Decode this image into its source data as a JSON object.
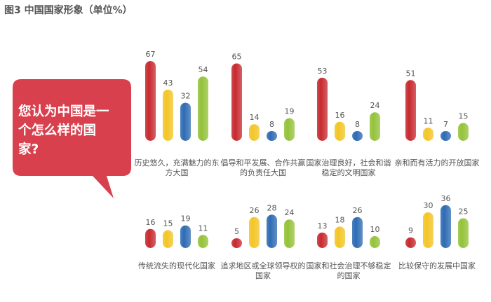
{
  "title": "图3 中国国家形象（单位%）",
  "question": "您认为中国是一个怎么样的国家?",
  "colors": {
    "bubble": "#d9404d",
    "series": [
      "#c72a2f",
      "#f3c526",
      "#2e6bb3",
      "#94c23a"
    ],
    "text": "#555555"
  },
  "chart_data": {
    "type": "bar",
    "groups": [
      {
        "label": "历史悠久，充满魅力的东方大国",
        "values": [
          67,
          43,
          32,
          54
        ]
      },
      {
        "label": "倡导和平发展、合作共赢的负责任大国",
        "values": [
          65,
          14,
          8,
          19
        ]
      },
      {
        "label": "国家治理良好，社会和谐稳定的文明国家",
        "values": [
          53,
          16,
          8,
          24
        ]
      },
      {
        "label": "亲和而有活力的开放国家",
        "values": [
          51,
          11,
          7,
          15
        ]
      },
      {
        "label": "传统流失的现代化国家",
        "values": [
          16,
          15,
          19,
          11
        ]
      },
      {
        "label": "追求地区或全球领导权的国家",
        "values": [
          5,
          26,
          28,
          24
        ]
      },
      {
        "label": "国家和社会治理不够稳定的国家",
        "values": [
          13,
          18,
          26,
          10
        ]
      },
      {
        "label": "比较保守的发展中国家",
        "values": [
          9,
          30,
          36,
          25
        ]
      }
    ]
  }
}
